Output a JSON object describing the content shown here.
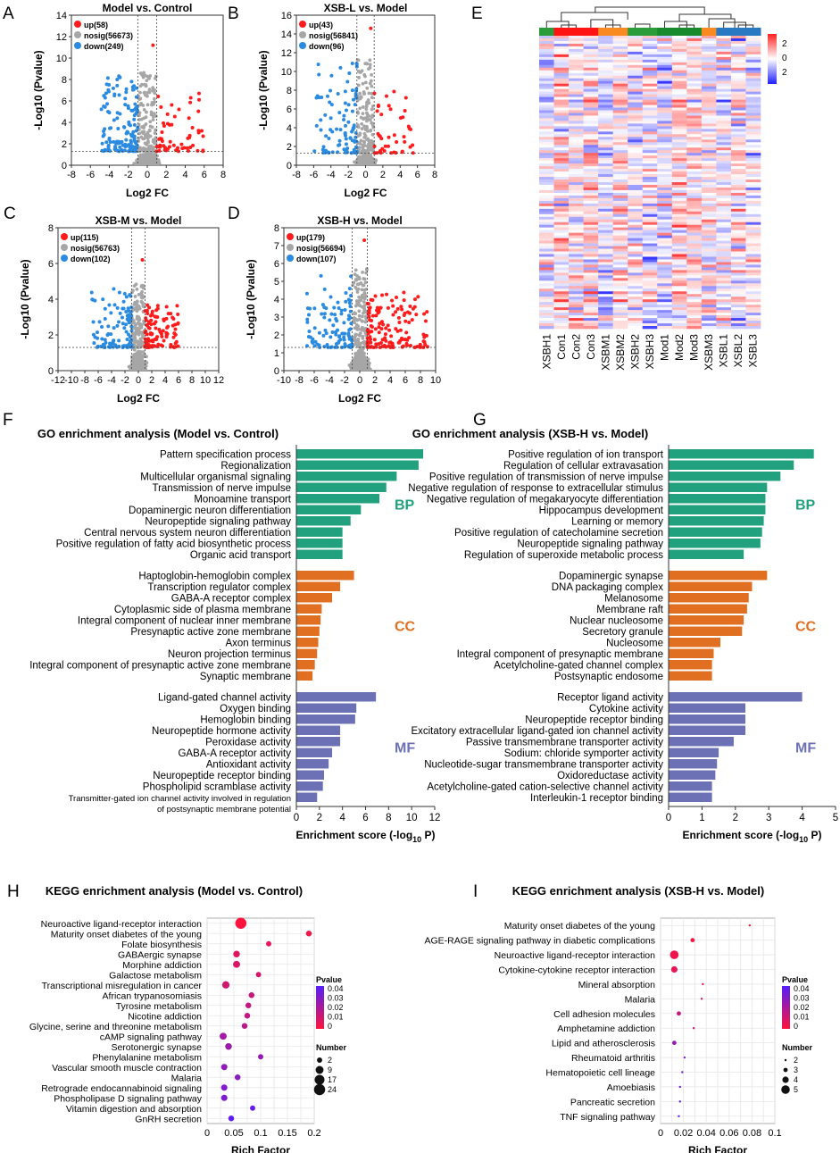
{
  "colors": {
    "up": "#ff1b1b",
    "nosig": "#a6a6a6",
    "down": "#2a8be0",
    "BP": "#21a17e",
    "CC": "#e06f22",
    "MF": "#6c70b5",
    "hm_group": [
      "#2a9c3a",
      "#ff1414",
      "#f98a22",
      "#2a9c3a",
      "#178a2e",
      "#f98a22",
      "#2978c2"
    ]
  },
  "panel_letters": {
    "A": "A",
    "B": "B",
    "C": "C",
    "D": "D",
    "E": "E",
    "F": "F",
    "G": "G",
    "H": "H",
    "I": "I"
  },
  "chart_data": [
    {
      "type": "scatter",
      "panel": "A",
      "title": "Model vs. Control",
      "xlabel": "Log2 FC",
      "ylabel": "-Log10 (Pvalue)",
      "xlim": [
        -8,
        8
      ],
      "ylim": [
        0,
        14
      ],
      "xticks": [
        -8,
        -6,
        -4,
        -2,
        0,
        2,
        4,
        6,
        8
      ],
      "yticks": [
        0,
        2,
        4,
        6,
        8,
        10,
        12,
        14
      ],
      "legend": [
        {
          "key": "up",
          "label": "up(58)"
        },
        {
          "key": "nosig",
          "label": "nosig(56673)"
        },
        {
          "key": "down",
          "label": "down(249)"
        }
      ],
      "fc_cut": 1,
      "p_cut": 1.3,
      "spread": [
        -5,
        6
      ],
      "maxp": 11.2,
      "seed": 11
    },
    {
      "type": "scatter",
      "panel": "B",
      "title": "XSB-L vs. Model",
      "xlabel": "Log2 FC",
      "ylabel": "-Log10 (Pvalue)",
      "xlim": [
        -8,
        8
      ],
      "ylim": [
        0,
        16
      ],
      "xticks": [
        -8,
        -6,
        -4,
        -2,
        0,
        2,
        4,
        6,
        8
      ],
      "yticks": [
        0,
        2,
        4,
        6,
        8,
        10,
        12,
        14,
        16
      ],
      "legend": [
        {
          "key": "up",
          "label": "up(43)"
        },
        {
          "key": "nosig",
          "label": "nosig(56841)"
        },
        {
          "key": "down",
          "label": "down(96)"
        }
      ],
      "fc_cut": 1,
      "p_cut": 1.3,
      "spread": [
        -6,
        6
      ],
      "maxp": 14.6,
      "seed": 22
    },
    {
      "type": "scatter",
      "panel": "C",
      "title": "XSB-M vs. Model",
      "xlabel": "Log2 FC",
      "ylabel": "-Log10 (Pvalue)",
      "xlim": [
        -12,
        12
      ],
      "ylim": [
        0,
        8
      ],
      "xticks": [
        -12,
        -10,
        -8,
        -6,
        -4,
        -2,
        0,
        2,
        4,
        6,
        8,
        10,
        12
      ],
      "yticks": [
        0,
        2,
        4,
        6,
        8
      ],
      "legend": [
        {
          "key": "up",
          "label": "up(115)"
        },
        {
          "key": "nosig",
          "label": "nosig(56763)"
        },
        {
          "key": "down",
          "label": "down(102)"
        }
      ],
      "fc_cut": 1,
      "p_cut": 1.3,
      "spread": [
        -7,
        6
      ],
      "maxp": 6.2,
      "seed": 33
    },
    {
      "type": "scatter",
      "panel": "D",
      "title": "XSB-H vs. Model",
      "xlabel": "Log2 FC",
      "ylabel": "-Log10 (Pvalue)",
      "xlim": [
        -10,
        10
      ],
      "ylim": [
        0,
        8
      ],
      "xticks": [
        -10,
        -8,
        -6,
        -4,
        -2,
        0,
        2,
        4,
        6,
        8,
        10
      ],
      "yticks": [
        0,
        1,
        2,
        3,
        4,
        5,
        6,
        7,
        8
      ],
      "legend": [
        {
          "key": "up",
          "label": "up(179)"
        },
        {
          "key": "nosig",
          "label": "nosig(56694)"
        },
        {
          "key": "down",
          "label": "down(107)"
        }
      ],
      "fc_cut": 1,
      "p_cut": 1.3,
      "spread": [
        -7,
        9
      ],
      "maxp": 7.3,
      "seed": 44
    },
    {
      "type": "heatmap",
      "panel": "E",
      "columns": [
        "XSBH1",
        "Con1",
        "Con2",
        "Con3",
        "XSBM1",
        "XSBM2",
        "XSBH2",
        "XSBH3",
        "Mod1",
        "Mod2",
        "Mod3",
        "XSBM3",
        "XSBL1",
        "XSBL2",
        "XSBL3"
      ],
      "groups": [
        0,
        1,
        1,
        1,
        2,
        2,
        3,
        3,
        4,
        4,
        4,
        5,
        6,
        6,
        6
      ],
      "colorbar": {
        "ticks": [
          "2",
          "0",
          "2"
        ],
        "range": [
          -2,
          2
        ]
      },
      "rows": 110,
      "seed": 7
    },
    {
      "type": "bar",
      "panel": "F",
      "orientation": "horizontal",
      "title": "GO enrichment analysis (Model vs. Control)",
      "xlabel": "Enrichment score (-log",
      "xlabel_sub": "10",
      "xlabel_end": " P)",
      "xlim": [
        0,
        12
      ],
      "xticks": [
        0,
        2,
        4,
        6,
        8,
        10,
        12
      ],
      "groups": [
        {
          "name": "BP",
          "terms": [
            "Pattern specification process",
            "Regionalization",
            "Multicellular organismal signaling",
            "Transmission of nerve impulse",
            "Monoamine transport",
            "Dopaminergic neuron differentiation",
            "Neuropeptide signaling pathway",
            "Central nervous system neuron differentiation",
            "Positive regulation of fatty acid biosynthetic process",
            "Organic acid transport"
          ],
          "values": [
            11.0,
            10.6,
            8.7,
            7.8,
            7.2,
            5.6,
            4.7,
            4.0,
            4.0,
            4.0
          ]
        },
        {
          "name": "CC",
          "terms": [
            "Haptoglobin-hemoglobin complex",
            "Transcription regulator complex",
            "GABA-A receptor complex",
            "Cytoplasmic side of plasma membrane",
            "Integral component of nuclear inner membrane",
            "Presynaptic active zone membrane",
            "Axon terminus",
            "Neuron projection terminus",
            "Integral component of presynaptic active zone membrane",
            "Synaptic membrane"
          ],
          "values": [
            5.0,
            3.8,
            3.1,
            2.2,
            2.1,
            2.0,
            1.9,
            1.8,
            1.6,
            1.4
          ]
        },
        {
          "name": "MF",
          "terms": [
            "Ligand-gated channel activity",
            "Oxygen binding",
            "Hemoglobin binding",
            "Neuropeptide hormone activity",
            "Peroxidase activity",
            "GABA-A receptor activity",
            "Antioxidant activity",
            "Neuropeptide receptor binding",
            "Phospholipid scramblase activity",
            "Transmitter-gated ion channel activity involved in regulation of postsynaptic membrane potential"
          ],
          "values": [
            6.9,
            5.2,
            5.1,
            3.8,
            3.8,
            3.1,
            2.8,
            2.4,
            2.3,
            1.8
          ]
        }
      ]
    },
    {
      "type": "bar",
      "panel": "G",
      "orientation": "horizontal",
      "title": "GO enrichment analysis (XSB-H vs. Model)",
      "xlabel": "Enrichment score (-log",
      "xlabel_sub": "10",
      "xlabel_end": " P)",
      "xlim": [
        0,
        5
      ],
      "xticks": [
        0,
        1,
        2,
        3,
        4,
        5
      ],
      "groups": [
        {
          "name": "BP",
          "terms": [
            "Positive regulation of ion transport",
            "Regulation of cellular extravasation",
            "Positive regulation of transmission of nerve impulse",
            "Negative regulation of response to extracellular stimulus",
            "Negative regulation of megakaryocyte differentiation",
            "Hippocampus development",
            "Learning or memory",
            "Positive regulation of catecholamine secretion",
            "Neuropeptide signaling pathway",
            "Regulation of superoxide metabolic process"
          ],
          "values": [
            4.35,
            3.75,
            3.35,
            2.95,
            2.9,
            2.9,
            2.85,
            2.8,
            2.75,
            2.25
          ]
        },
        {
          "name": "CC",
          "terms": [
            "Dopaminergic synapse",
            "DNA packaging complex",
            "Melanosome",
            "Membrane raft",
            "Nuclear nucleosome",
            "Secretory granule",
            "Nucleosome",
            "Integral component of presynaptic membrane",
            "Acetylcholine-gated channel complex",
            "Postsynaptic endosome"
          ],
          "values": [
            2.95,
            2.5,
            2.4,
            2.35,
            2.25,
            2.2,
            1.55,
            1.35,
            1.3,
            1.3
          ]
        },
        {
          "name": "MF",
          "terms": [
            "Receptor ligand activity",
            "Cytokine activity",
            "Neuropeptide receptor binding",
            "Excitatory extracellular ligand-gated ion channel activity",
            "Passive transmembrane transporter activity",
            "Sodium: chloride symporter activity",
            "Nucleotide-sugar transmembrane transporter activity",
            "Oxidoreductase activity",
            "Acetylcholine-gated cation-selective channel activity",
            "Interleukin-1 receptor binding"
          ],
          "values": [
            4.0,
            2.3,
            2.3,
            2.3,
            1.95,
            1.5,
            1.45,
            1.4,
            1.3,
            1.3
          ]
        }
      ]
    },
    {
      "type": "scatter",
      "subtype": "bubble",
      "panel": "H",
      "title": "KEGG enrichment analysis (Model vs. Control)",
      "xlabel": "Rich Factor",
      "xlim": [
        0,
        0.2
      ],
      "xticks": [
        "0",
        "0.05",
        "0.1",
        "0.15",
        "0.2"
      ],
      "xtick_vals": [
        0,
        0.05,
        0.1,
        0.15,
        0.2
      ],
      "terms": [
        "Neuroactive ligand-receptor interaction",
        "Maturity onset diabetes of the young",
        "Folate biosynthesis",
        "GABAergic synapse",
        "Morphine addiction",
        "Galactose metabolism",
        "Transcriptional misregulation in cancer",
        "African trypanosomiasis",
        "Tyrosine metabolism",
        "Nicotine addiction",
        "Glycine, serine and threonine metabolism",
        "cAMP signaling pathway",
        "Serotonergic synapse",
        "Phenylalanine metabolism",
        "Vascular smooth muscle contraction",
        "Malaria",
        "Retrograde endocannabinoid signaling",
        "Phospholipase D signaling pathway",
        "Vitamin digestion and absorption",
        "GnRH secretion"
      ],
      "rich": [
        0.063,
        0.19,
        0.115,
        0.055,
        0.055,
        0.096,
        0.035,
        0.083,
        0.077,
        0.075,
        0.07,
        0.03,
        0.04,
        0.1,
        0.032,
        0.057,
        0.032,
        0.032,
        0.085,
        0.045
      ],
      "pvalue": [
        0.0005,
        0.003,
        0.006,
        0.008,
        0.009,
        0.01,
        0.011,
        0.013,
        0.014,
        0.015,
        0.016,
        0.022,
        0.023,
        0.025,
        0.026,
        0.028,
        0.03,
        0.031,
        0.036,
        0.038
      ],
      "number": [
        24,
        3,
        2,
        5,
        6,
        2,
        7,
        3,
        3,
        3,
        3,
        6,
        5,
        2,
        4,
        3,
        4,
        4,
        2,
        3
      ],
      "pvalue_legend": {
        "title": "Pvalue",
        "ticks": [
          "0.04",
          "0.03",
          "0.02",
          "0.01",
          "0"
        ],
        "range": [
          0,
          0.04
        ]
      },
      "number_legend": {
        "title": "Number",
        "values": [
          2,
          9,
          17,
          24
        ],
        "labels": [
          "2",
          "9",
          "17",
          "24"
        ]
      }
    },
    {
      "type": "scatter",
      "subtype": "bubble",
      "panel": "I",
      "title": "KEGG enrichment analysis (XSB-H vs. Model)",
      "xlabel": "Rich Factor",
      "xlim": [
        0,
        0.1
      ],
      "xticks": [
        "0",
        "0.02",
        "0.04",
        "0.06",
        "0.08",
        "0.1"
      ],
      "xtick_vals": [
        0,
        0.02,
        0.04,
        0.06,
        0.08,
        0.1
      ],
      "terms": [
        "Maturity onset diabetes of the young",
        "AGE-RAGE signaling pathway in diabetic complications",
        "Neuroactive ligand-receptor interaction",
        "Cytokine-cytokine receptor interaction",
        "Mineral absorption",
        "Malaria",
        "Cell adhesion molecules",
        "Amphetamine addiction",
        "Lipid and atherosclerosis",
        "Rheumatoid arthritis",
        "Hematopoietic cell lineage",
        "Amoebiasis",
        "Pancreatic secretion",
        "TNF signaling pathway"
      ],
      "rich": [
        0.078,
        0.028,
        0.012,
        0.012,
        0.037,
        0.036,
        0.016,
        0.029,
        0.012,
        0.021,
        0.019,
        0.017,
        0.017,
        0.016
      ],
      "pvalue": [
        0.002,
        0.003,
        0.004,
        0.006,
        0.008,
        0.009,
        0.013,
        0.014,
        0.025,
        0.03,
        0.033,
        0.036,
        0.038,
        0.039
      ],
      "number": [
        2,
        3,
        5,
        4,
        2,
        2,
        3,
        2,
        3,
        2,
        2,
        2,
        2,
        2
      ],
      "pvalue_legend": {
        "title": "Pvalue",
        "ticks": [
          "0.04",
          "0.03",
          "0.02",
          "0.01",
          "0"
        ],
        "range": [
          0,
          0.04
        ]
      },
      "number_legend": {
        "title": "Number",
        "values": [
          2,
          3,
          4,
          5
        ],
        "labels": [
          "2",
          "3",
          "4",
          "5"
        ]
      }
    }
  ]
}
